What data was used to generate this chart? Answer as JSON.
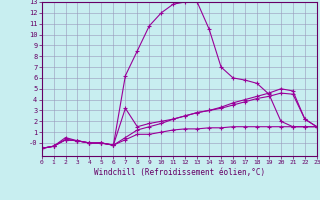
{
  "xlabel": "Windchill (Refroidissement éolien,°C)",
  "background_color": "#c8eef0",
  "line_color": "#990099",
  "xlim": [
    0,
    23
  ],
  "ylim": [
    -1,
    13
  ],
  "xticks": [
    0,
    1,
    2,
    3,
    4,
    5,
    6,
    7,
    8,
    9,
    10,
    11,
    12,
    13,
    14,
    15,
    16,
    17,
    18,
    19,
    20,
    21,
    22,
    23
  ],
  "yticks": [
    0,
    1,
    2,
    3,
    4,
    5,
    6,
    7,
    8,
    9,
    10,
    11,
    12,
    13
  ],
  "ytick_labels": [
    "-0",
    "1",
    "2",
    "3",
    "4",
    "5",
    "6",
    "7",
    "8",
    "9",
    "10",
    "11",
    "12",
    "13"
  ],
  "lines": [
    {
      "x": [
        0,
        1,
        2,
        3,
        4,
        5,
        6,
        7,
        8,
        9,
        10,
        11,
        12,
        13,
        14,
        15,
        16,
        17,
        18,
        19,
        20,
        21,
        22,
        23
      ],
      "y": [
        -0.5,
        -0.3,
        0.5,
        0.2,
        0.0,
        0.0,
        -0.2,
        6.2,
        8.5,
        10.8,
        12.0,
        12.8,
        13.0,
        13.0,
        10.5,
        7.0,
        6.0,
        5.8,
        5.5,
        4.5,
        2.0,
        1.5,
        1.5,
        1.5
      ]
    },
    {
      "x": [
        0,
        1,
        2,
        3,
        4,
        5,
        6,
        7,
        8,
        9,
        10,
        11,
        12,
        13,
        14,
        15,
        16,
        17,
        18,
        19,
        20,
        21,
        22,
        23
      ],
      "y": [
        -0.5,
        -0.3,
        0.3,
        0.2,
        0.0,
        0.0,
        -0.2,
        0.5,
        1.2,
        1.5,
        1.8,
        2.2,
        2.5,
        2.8,
        3.0,
        3.3,
        3.7,
        4.0,
        4.3,
        4.6,
        5.0,
        4.8,
        2.2,
        1.5
      ]
    },
    {
      "x": [
        0,
        1,
        2,
        3,
        4,
        5,
        6,
        7,
        8,
        9,
        10,
        11,
        12,
        13,
        14,
        15,
        16,
        17,
        18,
        19,
        20,
        21,
        22,
        23
      ],
      "y": [
        -0.5,
        -0.3,
        0.3,
        0.2,
        0.0,
        0.0,
        -0.2,
        3.2,
        1.5,
        1.8,
        2.0,
        2.2,
        2.5,
        2.8,
        3.0,
        3.2,
        3.5,
        3.8,
        4.1,
        4.3,
        4.6,
        4.5,
        2.2,
        1.5
      ]
    },
    {
      "x": [
        0,
        1,
        2,
        3,
        4,
        5,
        6,
        7,
        8,
        9,
        10,
        11,
        12,
        13,
        14,
        15,
        16,
        17,
        18,
        19,
        20,
        21,
        22,
        23
      ],
      "y": [
        -0.5,
        -0.3,
        0.3,
        0.2,
        0.0,
        0.0,
        -0.2,
        0.3,
        0.8,
        0.8,
        1.0,
        1.2,
        1.3,
        1.3,
        1.4,
        1.4,
        1.5,
        1.5,
        1.5,
        1.5,
        1.5,
        1.5,
        1.5,
        1.5
      ]
    }
  ]
}
